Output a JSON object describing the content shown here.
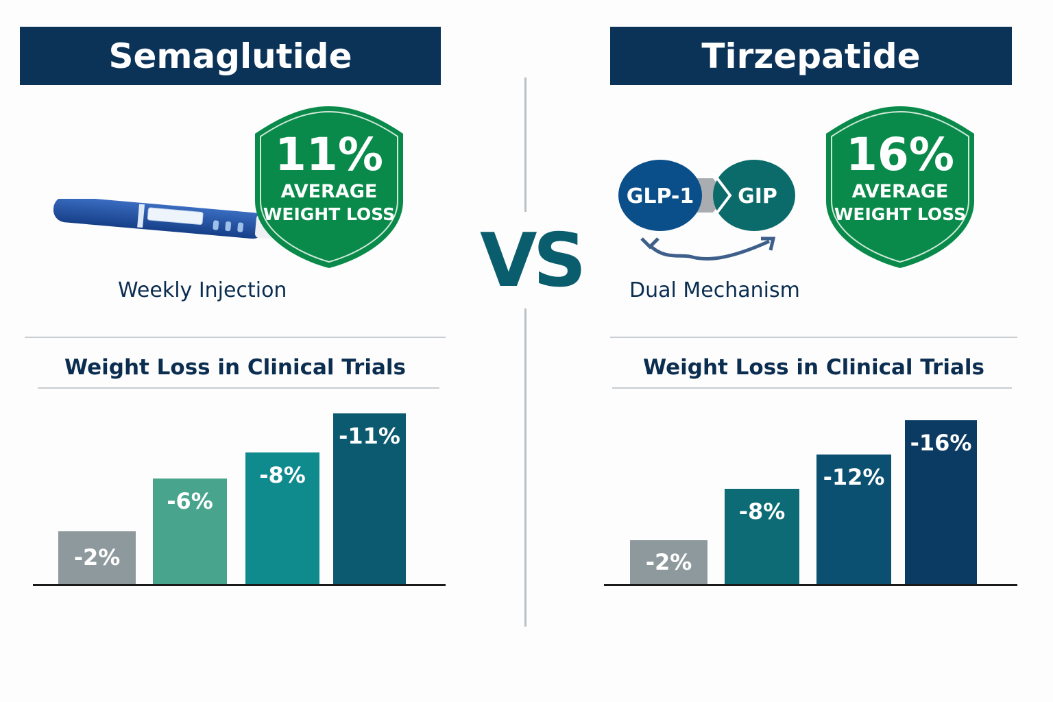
{
  "left": {
    "title": "Semaglutide",
    "badge": {
      "value": "11%",
      "line1": "AVERAGE",
      "line2": "WEIGHT LOSS"
    },
    "icon": "injection-pen-icon",
    "caption": "Weekly Injection",
    "chart_title": "Weight Loss in Clinical Trials"
  },
  "right": {
    "title": "Tirzepatide",
    "badge": {
      "value": "16%",
      "line1": "AVERAGE",
      "line2": "WEIGHT LOSS"
    },
    "mechanism": {
      "a": "GLP-1",
      "b": "GIP",
      "icon": "dual-arrows-icon"
    },
    "caption": "Dual Mechanism",
    "chart_title": "Weight Loss in Clinical Trials"
  },
  "vs": "VS",
  "colors": {
    "header": "#0b3358",
    "badge": "#0a8a4a",
    "glp1": "#0b4f8a",
    "gip": "#0b6b6b"
  },
  "chart_data": [
    {
      "type": "bar",
      "title": "Weight Loss in Clinical Trials",
      "values": [
        -2,
        -6,
        -8,
        -11
      ],
      "labels": [
        "-2%",
        "-6%",
        "-8%",
        "-11%"
      ],
      "colors": [
        "#8e999d",
        "#48a48c",
        "#0f8a8d",
        "#0b5a6f"
      ]
    },
    {
      "type": "bar",
      "title": "Weight Loss in Clinical Trials",
      "values": [
        -2,
        -8,
        -12,
        -16
      ],
      "labels": [
        "-2%",
        "-8%",
        "-12%",
        "-16%"
      ],
      "colors": [
        "#8e999d",
        "#0c6b74",
        "#0b5070",
        "#0b3a62"
      ]
    }
  ]
}
